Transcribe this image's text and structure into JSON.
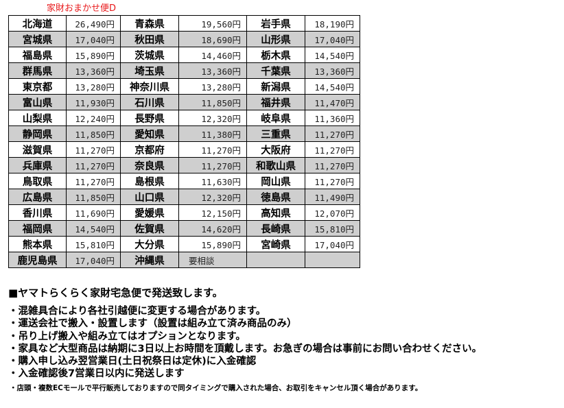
{
  "title": "家財おまかせ便D",
  "rows": [
    [
      [
        "北海道",
        "26,490円"
      ],
      [
        "青森県",
        "19,560円"
      ],
      [
        "岩手県",
        "18,190円"
      ]
    ],
    [
      [
        "宮城県",
        "17,040円"
      ],
      [
        "秋田県",
        "18,690円"
      ],
      [
        "山形県",
        "17,040円"
      ]
    ],
    [
      [
        "福島県",
        "15,890円"
      ],
      [
        "茨城県",
        "14,460円"
      ],
      [
        "栃木県",
        "14,540円"
      ]
    ],
    [
      [
        "群馬県",
        "13,360円"
      ],
      [
        "埼玉県",
        "13,360円"
      ],
      [
        "千葉県",
        "13,360円"
      ]
    ],
    [
      [
        "東京都",
        "13,280円"
      ],
      [
        "神奈川県",
        "13,280円"
      ],
      [
        "新潟県",
        "14,540円"
      ]
    ],
    [
      [
        "富山県",
        "11,930円"
      ],
      [
        "石川県",
        "11,850円"
      ],
      [
        "福井県",
        "11,470円"
      ]
    ],
    [
      [
        "山梨県",
        "12,240円"
      ],
      [
        "長野県",
        "12,320円"
      ],
      [
        "岐阜県",
        "11,360円"
      ]
    ],
    [
      [
        "静岡県",
        "11,850円"
      ],
      [
        "愛知県",
        "11,380円"
      ],
      [
        "三重県",
        "11,270円"
      ]
    ],
    [
      [
        "滋賀県",
        "11,270円"
      ],
      [
        "京都府",
        "11,270円"
      ],
      [
        "大阪府",
        "11,270円"
      ]
    ],
    [
      [
        "兵庫県",
        "11,270円"
      ],
      [
        "奈良県",
        "11,270円"
      ],
      [
        "和歌山県",
        "11,270円"
      ]
    ],
    [
      [
        "鳥取県",
        "11,270円"
      ],
      [
        "島根県",
        "11,630円"
      ],
      [
        "岡山県",
        "11,270円"
      ]
    ],
    [
      [
        "広島県",
        "11,850円"
      ],
      [
        "山口県",
        "12,320円"
      ],
      [
        "徳島県",
        "11,490円"
      ]
    ],
    [
      [
        "香川県",
        "11,690円"
      ],
      [
        "愛媛県",
        "12,150円"
      ],
      [
        "高知県",
        "12,070円"
      ]
    ],
    [
      [
        "福岡県",
        "14,540円"
      ],
      [
        "佐賀県",
        "14,620円"
      ],
      [
        "長崎県",
        "15,810円"
      ]
    ],
    [
      [
        "熊本県",
        "15,810円"
      ],
      [
        "大分県",
        "15,890円"
      ],
      [
        "宮崎県",
        "17,040円"
      ]
    ],
    [
      [
        "鹿児島県",
        "17,040円"
      ],
      [
        "沖縄県",
        "要相談"
      ],
      [
        "",
        ""
      ]
    ]
  ],
  "notes": {
    "heading": "■ヤマトらくらく家財宅急便で発送致します。",
    "items": [
      "・混雑具合により各社引越便に変更する場合があります。",
      "・運送会社で搬入・設置します（設置は組み立て済み商品のみ）",
      "・吊り上げ搬入や組み立てはオプションとなります。",
      "・家具など大型商品は納期に3日以上お時間を頂戴します。お急ぎの場合は事前にお問い合わせください。",
      "・購入申し込み翌営業日(土日祝祭日は定休)に入金確認",
      "・入金確認後7営業日以内に発送します"
    ],
    "footnote": "・店頭・複数ECモールで平行販売しておりますので同タイミングで購入された場合、お取引をキャンセル頂く場合があります。"
  }
}
